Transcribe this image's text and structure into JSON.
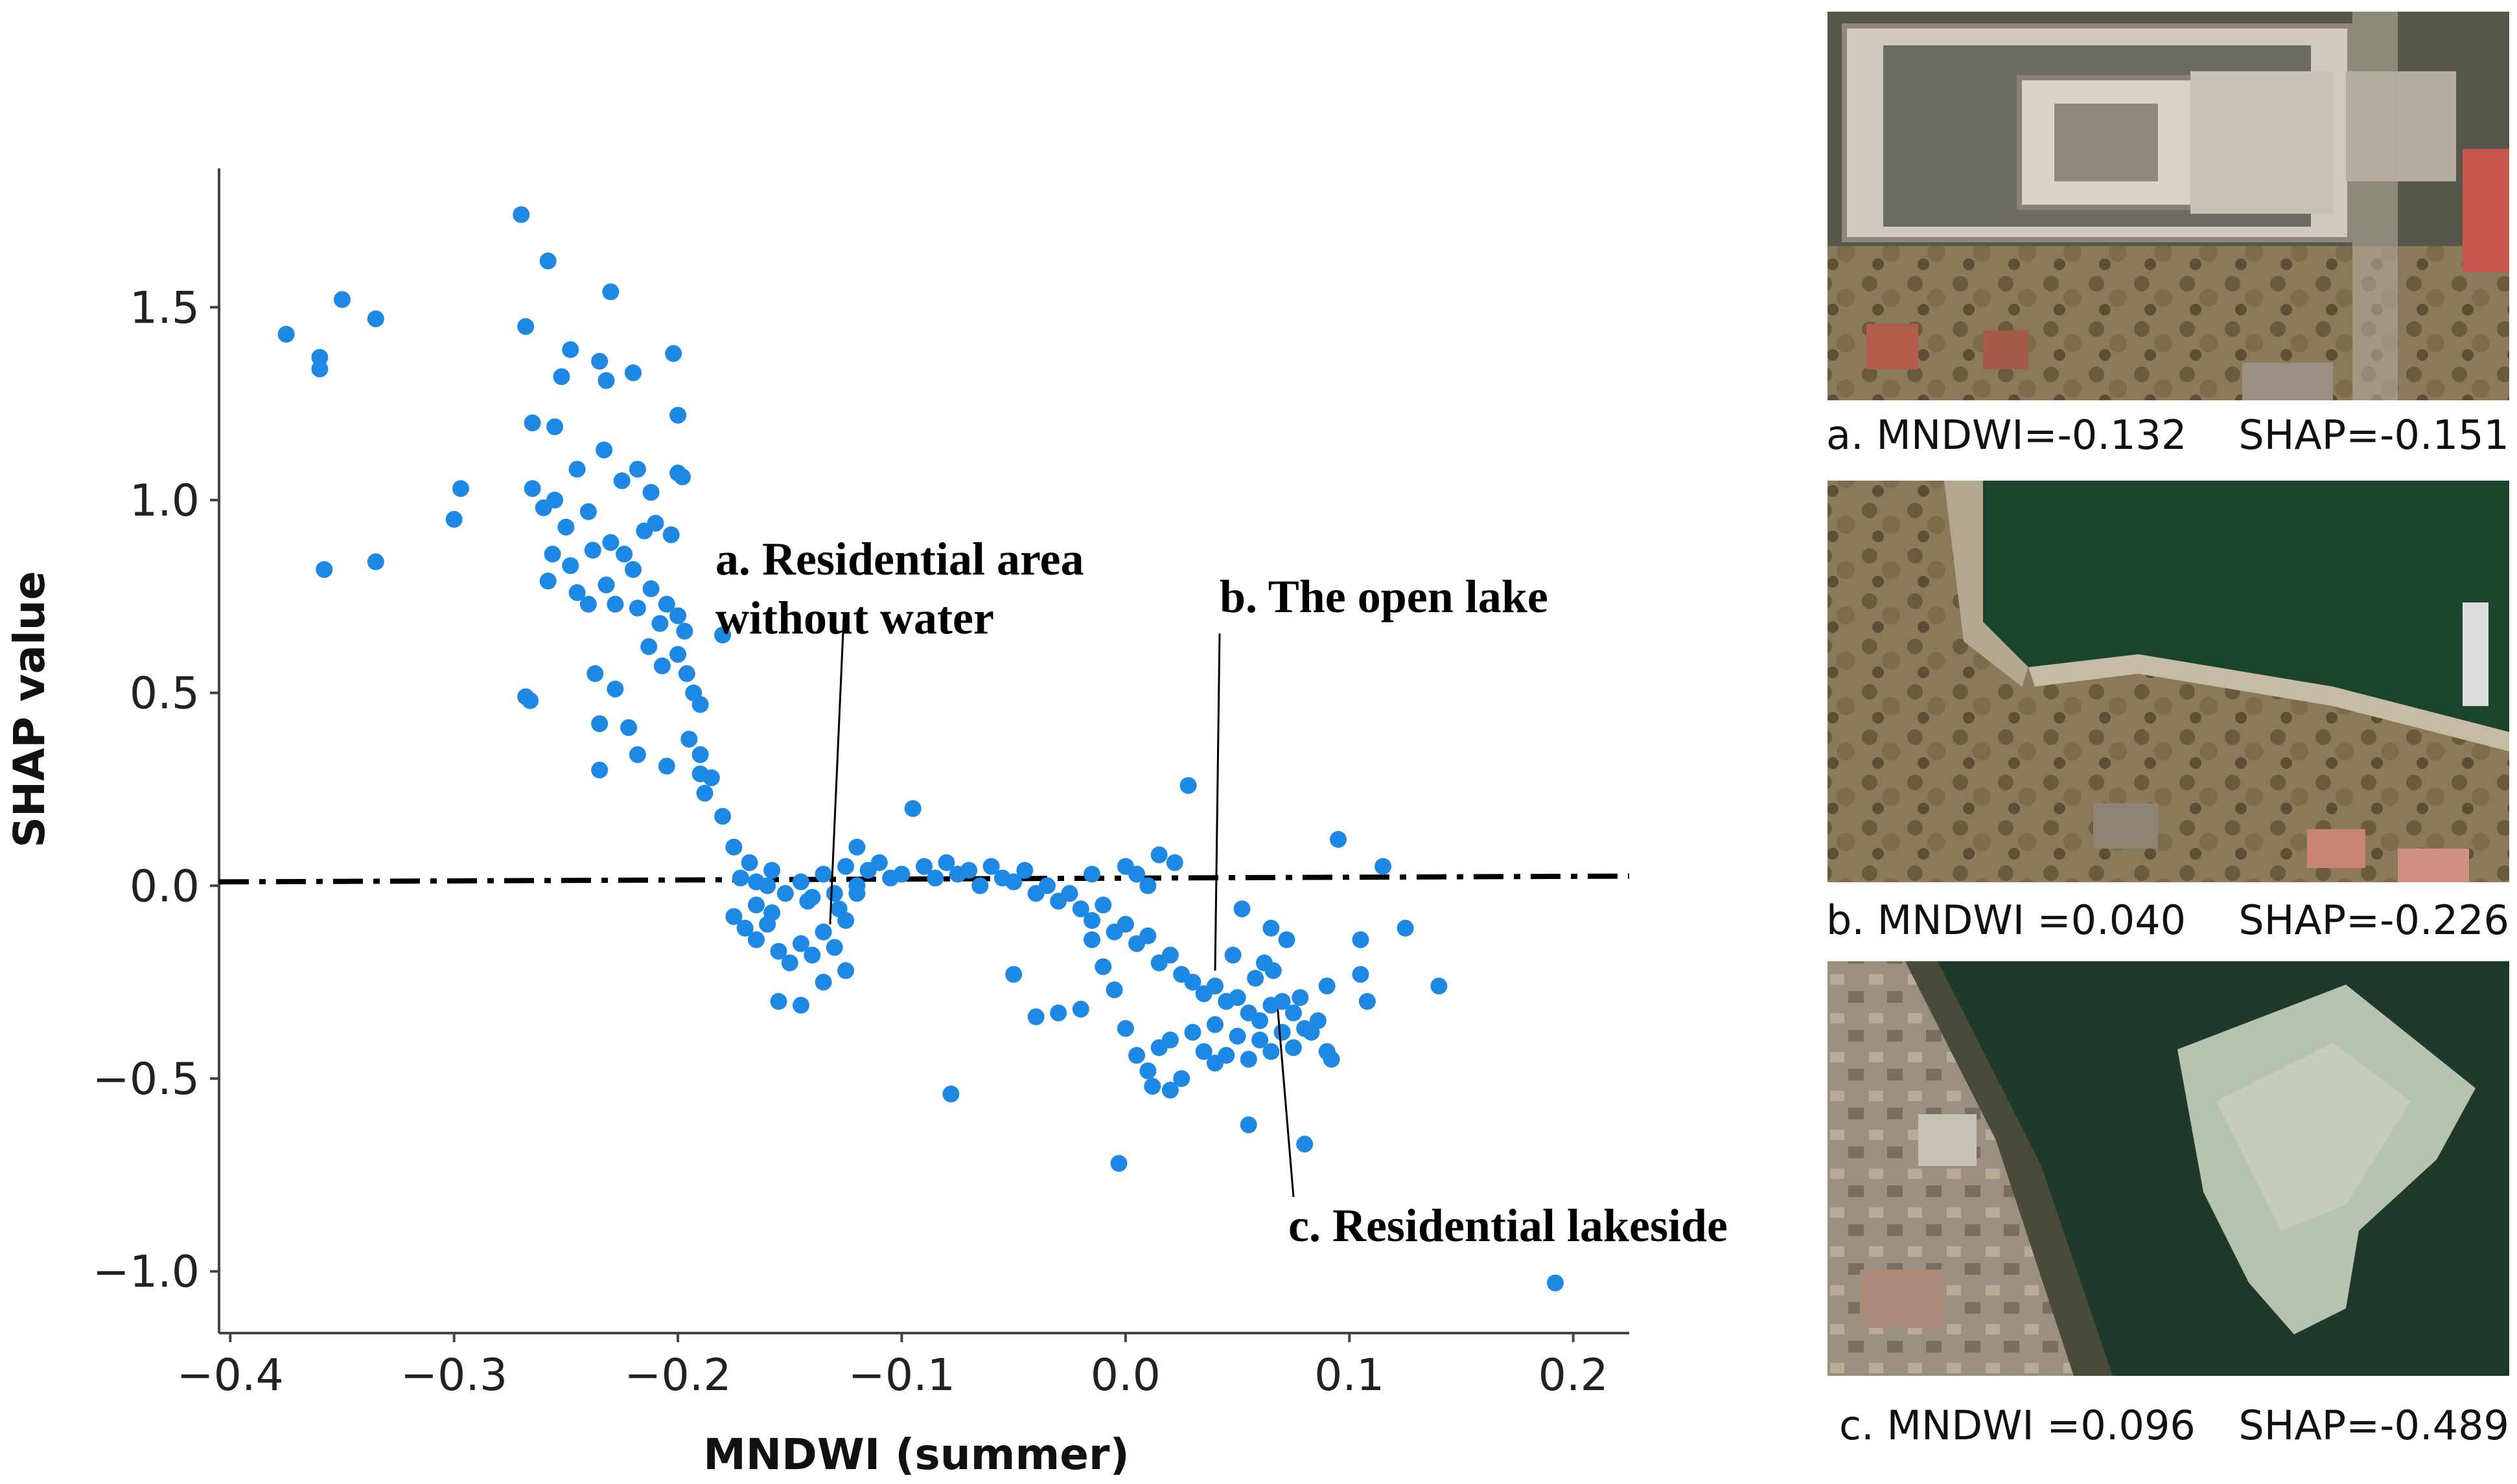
{
  "colors": {
    "points": "#1e88e5",
    "axis": "#444444",
    "reference_line": "#000000",
    "text": "#111111"
  },
  "chart_data": {
    "type": "scatter",
    "title": "",
    "xlabel": "MNDWI (summer)",
    "ylabel": "SHAP value",
    "xlim": [
      -0.405,
      0.225
    ],
    "ylim": [
      -1.16,
      1.86
    ],
    "x_ticks": [
      -0.4,
      -0.3,
      -0.2,
      -0.1,
      0.0,
      0.1,
      0.2
    ],
    "x_tick_labels": [
      "−0.4",
      "−0.3",
      "−0.2",
      "−0.1",
      "0.0",
      "0.1",
      "0.2"
    ],
    "y_ticks": [
      1.5,
      1.0,
      0.5,
      0.0,
      -0.5,
      -1.0
    ],
    "y_tick_labels": [
      "1.5",
      "1.0",
      "0.5",
      "0.0",
      "−0.5",
      "−1.0"
    ],
    "grid": false,
    "reference_line": {
      "style": "dash-dot",
      "x": [
        -0.405,
        0.225
      ],
      "y": [
        0.01,
        0.025
      ]
    },
    "series": [
      {
        "name": "SHAP values",
        "points": [
          [
            -0.375,
            1.43
          ],
          [
            -0.36,
            1.37
          ],
          [
            -0.36,
            1.34
          ],
          [
            -0.35,
            1.52
          ],
          [
            -0.335,
            1.47
          ],
          [
            -0.358,
            0.82
          ],
          [
            -0.335,
            0.84
          ],
          [
            -0.3,
            0.95
          ],
          [
            -0.297,
            1.03
          ],
          [
            -0.27,
            1.74
          ],
          [
            -0.268,
            1.45
          ],
          [
            -0.258,
            1.62
          ],
          [
            -0.23,
            1.54
          ],
          [
            -0.265,
            1.2
          ],
          [
            -0.255,
            1.19
          ],
          [
            -0.248,
            1.39
          ],
          [
            -0.252,
            1.32
          ],
          [
            -0.235,
            1.36
          ],
          [
            -0.232,
            1.31
          ],
          [
            -0.22,
            1.33
          ],
          [
            -0.202,
            1.38
          ],
          [
            -0.2,
            1.22
          ],
          [
            -0.265,
            1.03
          ],
          [
            -0.26,
            0.98
          ],
          [
            -0.255,
            1.0
          ],
          [
            -0.25,
            0.93
          ],
          [
            -0.245,
            1.08
          ],
          [
            -0.24,
            0.97
          ],
          [
            -0.233,
            1.13
          ],
          [
            -0.225,
            1.05
          ],
          [
            -0.218,
            1.08
          ],
          [
            -0.212,
            1.02
          ],
          [
            -0.2,
            1.07
          ],
          [
            -0.198,
            1.06
          ],
          [
            -0.256,
            0.86
          ],
          [
            -0.248,
            0.83
          ],
          [
            -0.238,
            0.87
          ],
          [
            -0.23,
            0.89
          ],
          [
            -0.224,
            0.86
          ],
          [
            -0.215,
            0.92
          ],
          [
            -0.21,
            0.94
          ],
          [
            -0.203,
            0.91
          ],
          [
            -0.258,
            0.79
          ],
          [
            -0.245,
            0.76
          ],
          [
            -0.232,
            0.78
          ],
          [
            -0.22,
            0.82
          ],
          [
            -0.212,
            0.77
          ],
          [
            -0.205,
            0.73
          ],
          [
            -0.24,
            0.73
          ],
          [
            -0.228,
            0.73
          ],
          [
            -0.218,
            0.72
          ],
          [
            -0.208,
            0.68
          ],
          [
            -0.2,
            0.7
          ],
          [
            -0.213,
            0.62
          ],
          [
            -0.207,
            0.57
          ],
          [
            -0.2,
            0.6
          ],
          [
            -0.196,
            0.55
          ],
          [
            -0.193,
            0.5
          ],
          [
            -0.19,
            0.47
          ],
          [
            -0.18,
            0.65
          ],
          [
            -0.197,
            0.66
          ],
          [
            -0.268,
            0.49
          ],
          [
            -0.266,
            0.48
          ],
          [
            -0.237,
            0.55
          ],
          [
            -0.235,
            0.42
          ],
          [
            -0.228,
            0.51
          ],
          [
            -0.222,
            0.41
          ],
          [
            -0.218,
            0.34
          ],
          [
            -0.235,
            0.3
          ],
          [
            -0.205,
            0.31
          ],
          [
            -0.195,
            0.38
          ],
          [
            -0.19,
            0.29
          ],
          [
            -0.188,
            0.24
          ],
          [
            -0.19,
            0.34
          ],
          [
            -0.185,
            0.28
          ],
          [
            -0.18,
            0.18
          ],
          [
            -0.175,
            0.1
          ],
          [
            -0.172,
            0.02
          ],
          [
            -0.168,
            0.06
          ],
          [
            -0.165,
            0.01
          ],
          [
            -0.16,
            0.0
          ],
          [
            -0.158,
            0.04
          ],
          [
            -0.152,
            -0.02
          ],
          [
            -0.145,
            0.01
          ],
          [
            -0.14,
            -0.03
          ],
          [
            -0.135,
            0.03
          ],
          [
            -0.13,
            -0.02
          ],
          [
            -0.125,
            0.05
          ],
          [
            -0.12,
            0.1
          ],
          [
            -0.115,
            0.04
          ],
          [
            -0.11,
            0.06
          ],
          [
            -0.105,
            0.02
          ],
          [
            -0.1,
            0.03
          ],
          [
            -0.095,
            0.2
          ],
          [
            -0.09,
            0.05
          ],
          [
            -0.085,
            0.02
          ],
          [
            -0.08,
            0.06
          ],
          [
            -0.075,
            0.03
          ],
          [
            -0.07,
            0.04
          ],
          [
            -0.065,
            0.0
          ],
          [
            -0.06,
            0.05
          ],
          [
            -0.055,
            0.02
          ],
          [
            -0.05,
            0.01
          ],
          [
            -0.045,
            0.04
          ],
          [
            -0.04,
            -0.02
          ],
          [
            -0.035,
            0.0
          ],
          [
            -0.03,
            -0.04
          ],
          [
            -0.025,
            -0.02
          ],
          [
            -0.02,
            -0.06
          ],
          [
            -0.015,
            -0.09
          ],
          [
            -0.01,
            -0.05
          ],
          [
            -0.005,
            -0.12
          ],
          [
            0.0,
            -0.1
          ],
          [
            0.005,
            -0.15
          ],
          [
            0.01,
            -0.13
          ],
          [
            0.015,
            -0.2
          ],
          [
            0.02,
            -0.18
          ],
          [
            0.025,
            -0.23
          ],
          [
            0.03,
            -0.25
          ],
          [
            0.035,
            -0.28
          ],
          [
            0.04,
            -0.26
          ],
          [
            0.045,
            -0.3
          ],
          [
            0.05,
            -0.29
          ],
          [
            0.055,
            -0.33
          ],
          [
            0.06,
            -0.35
          ],
          [
            0.065,
            -0.31
          ],
          [
            0.07,
            -0.38
          ],
          [
            0.075,
            -0.42
          ],
          [
            -0.175,
            -0.08
          ],
          [
            -0.17,
            -0.11
          ],
          [
            -0.165,
            -0.14
          ],
          [
            -0.16,
            -0.1
          ],
          [
            -0.155,
            -0.17
          ],
          [
            -0.15,
            -0.2
          ],
          [
            -0.145,
            -0.15
          ],
          [
            -0.14,
            -0.18
          ],
          [
            -0.135,
            -0.12
          ],
          [
            -0.13,
            -0.16
          ],
          [
            -0.125,
            -0.09
          ],
          [
            -0.12,
            -0.02
          ],
          [
            -0.155,
            -0.3
          ],
          [
            -0.145,
            -0.31
          ],
          [
            -0.135,
            -0.25
          ],
          [
            -0.125,
            -0.22
          ],
          [
            -0.12,
            0.0
          ],
          [
            -0.165,
            -0.05
          ],
          [
            -0.158,
            -0.07
          ],
          [
            -0.142,
            -0.04
          ],
          [
            -0.128,
            -0.06
          ],
          [
            -0.078,
            -0.54
          ],
          [
            -0.05,
            -0.23
          ],
          [
            -0.04,
            -0.34
          ],
          [
            -0.03,
            -0.33
          ],
          [
            -0.02,
            -0.32
          ],
          [
            -0.015,
            -0.14
          ],
          [
            -0.01,
            -0.21
          ],
          [
            -0.005,
            -0.27
          ],
          [
            0.0,
            -0.37
          ],
          [
            -0.003,
            -0.72
          ],
          [
            0.005,
            -0.44
          ],
          [
            0.01,
            -0.48
          ],
          [
            0.015,
            -0.42
          ],
          [
            0.02,
            -0.4
          ],
          [
            0.025,
            -0.5
          ],
          [
            0.03,
            -0.38
          ],
          [
            0.035,
            -0.43
          ],
          [
            0.04,
            -0.36
          ],
          [
            0.045,
            -0.44
          ],
          [
            0.05,
            -0.39
          ],
          [
            0.055,
            -0.45
          ],
          [
            0.06,
            -0.4
          ],
          [
            0.065,
            -0.43
          ],
          [
            0.07,
            -0.3
          ],
          [
            0.075,
            -0.33
          ],
          [
            0.012,
            -0.52
          ],
          [
            0.02,
            -0.53
          ],
          [
            0.04,
            -0.46
          ],
          [
            0.055,
            -0.62
          ],
          [
            0.08,
            -0.67
          ],
          [
            0.08,
            -0.37
          ],
          [
            0.09,
            -0.43
          ],
          [
            0.09,
            -0.26
          ],
          [
            0.092,
            -0.45
          ],
          [
            0.095,
            0.12
          ],
          [
            0.105,
            -0.14
          ],
          [
            0.105,
            -0.23
          ],
          [
            0.108,
            -0.3
          ],
          [
            0.115,
            0.05
          ],
          [
            0.125,
            -0.11
          ],
          [
            0.14,
            -0.26
          ],
          [
            0.065,
            -0.11
          ],
          [
            0.072,
            -0.14
          ],
          [
            0.078,
            -0.29
          ],
          [
            0.083,
            -0.38
          ],
          [
            0.086,
            -0.35
          ],
          [
            0.052,
            -0.06
          ],
          [
            0.028,
            0.26
          ],
          [
            0.022,
            0.06
          ],
          [
            0.01,
            0.0
          ],
          [
            0.0,
            0.05
          ],
          [
            -0.015,
            0.03
          ],
          [
            0.015,
            0.08
          ],
          [
            0.005,
            0.03
          ],
          [
            0.062,
            -0.2
          ],
          [
            0.048,
            -0.18
          ],
          [
            0.058,
            -0.24
          ],
          [
            0.066,
            -0.22
          ],
          [
            0.192,
            -1.03
          ]
        ]
      }
    ],
    "annotations": [
      {
        "label": "annot_a",
        "point": [
          -0.132,
          -0.1
        ]
      },
      {
        "label": "annot_b",
        "point": [
          0.04,
          -0.22
        ]
      },
      {
        "label": "annot_c",
        "point": [
          0.068,
          -0.32
        ]
      }
    ]
  },
  "annotations_text": {
    "a_line1": "a. Residential area",
    "a_line2": "without water",
    "b": "b. The open lake",
    "c": "c. Residential lakeside"
  },
  "photos": [
    {
      "scene": "campus buildings with courtyard",
      "caption_left": "a. MNDWI=-0.132",
      "caption_right": "SHAP=-0.151"
    },
    {
      "scene": "lakeshore with open lake",
      "caption_left": "b. MNDWI =0.040",
      "caption_right": "SHAP=-0.226"
    },
    {
      "scene": "residential lakeside with frozen lake",
      "caption_left": "c. MNDWI =0.096",
      "caption_right": "SHAP=-0.489"
    }
  ]
}
